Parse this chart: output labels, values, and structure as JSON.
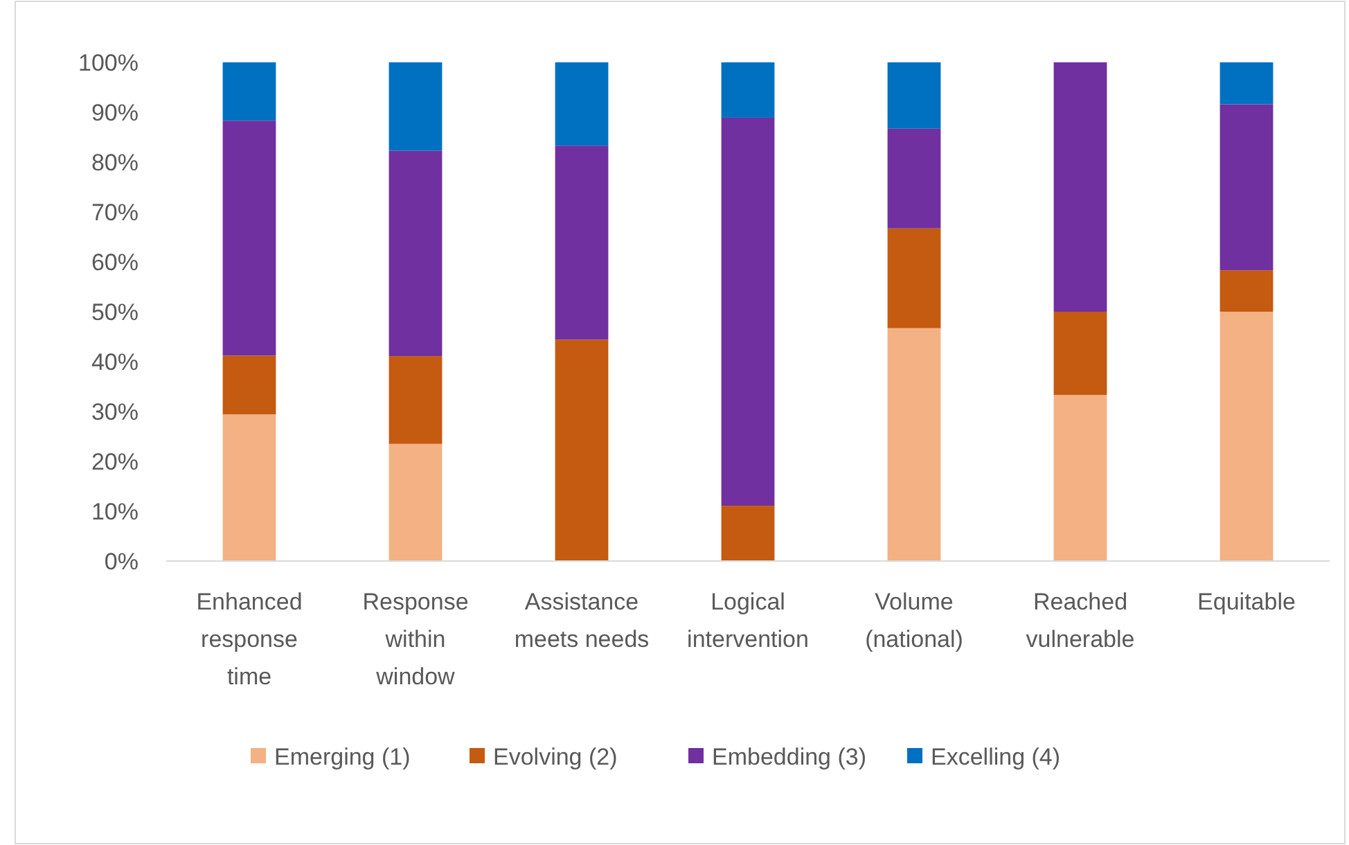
{
  "chart_data": {
    "type": "bar",
    "stacked": true,
    "categories": [
      "Enhanced response time",
      "Response within window",
      "Assistance meets needs",
      "Logical intervention",
      "Volume (national)",
      "Reached vulnerable",
      "Equitable"
    ],
    "series": [
      {
        "name": "Emerging (1)",
        "color": "#f4b183",
        "values": [
          29.4,
          23.5,
          0,
          0,
          46.7,
          33.3,
          50
        ]
      },
      {
        "name": "Evolving (2)",
        "color": "#c55a11",
        "values": [
          11.8,
          17.6,
          44.4,
          11.1,
          20,
          16.7,
          8.3
        ]
      },
      {
        "name": "Embedding (3)",
        "color": "#7030a0",
        "values": [
          47.1,
          41.2,
          38.9,
          77.8,
          20,
          50,
          33.3
        ]
      },
      {
        "name": "Excelling (4)",
        "color": "#0070c0",
        "values": [
          11.7,
          17.7,
          16.7,
          11.1,
          13.3,
          0,
          8.4
        ]
      }
    ],
    "ylim": [
      0,
      100
    ],
    "yticks": [
      {
        "value": 0,
        "label": "0%"
      },
      {
        "value": 10,
        "label": "10%"
      },
      {
        "value": 20,
        "label": "20%"
      },
      {
        "value": 30,
        "label": "30%"
      },
      {
        "value": 40,
        "label": "40%"
      },
      {
        "value": 50,
        "label": "50%"
      },
      {
        "value": 60,
        "label": "60%"
      },
      {
        "value": 70,
        "label": "70%"
      },
      {
        "value": 80,
        "label": "80%"
      },
      {
        "value": 90,
        "label": "90%"
      },
      {
        "value": 100,
        "label": "100%"
      }
    ],
    "grid": false,
    "legend": "bottom"
  }
}
